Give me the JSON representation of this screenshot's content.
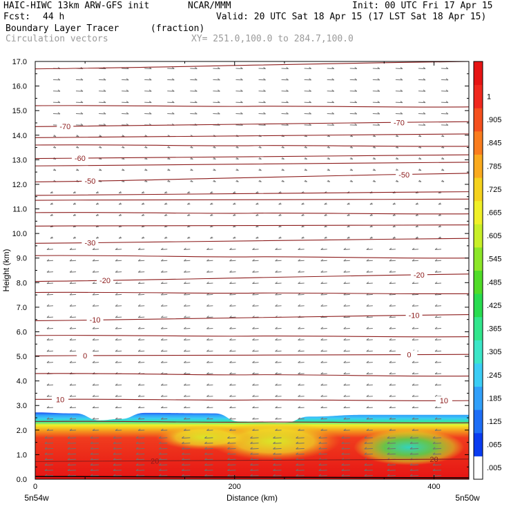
{
  "header": {
    "model": "HAIC-HIWC 13km ARW-GFS init",
    "org": "NCAR/MMM",
    "init": "Init: 00 UTC Fri 17 Apr 15",
    "fcst_label": "Fcst:",
    "fcst_value": "44 h",
    "valid": "Valid: 20 UTC Sat 18 Apr 15 (17 LST Sat 18 Apr 15)",
    "field1_name": "Boundary Layer Tracer",
    "field1_units": "(fraction)",
    "field2_name": "Circulation vectors",
    "xsec_line": "XY= 251.0,100.0 to 284.7,100.0"
  },
  "colors": {
    "contour": "#8b1a1a",
    "vector": "#707070",
    "colorbar": [
      "#ffffff",
      "#0a3cf0",
      "#1e6ef6",
      "#32a0fa",
      "#3ccdf5",
      "#3ce6c8",
      "#32e68c",
      "#28dc50",
      "#50dc28",
      "#8ce628",
      "#c8ef28",
      "#f0f028",
      "#f5d21e",
      "#faaa1e",
      "#fa7d1e",
      "#f5501e",
      "#f0281e",
      "#e61414"
    ]
  },
  "chart_data": {
    "type": "heatmap",
    "title": "Boundary Layer Tracer",
    "xlabel": "Distance (km)",
    "ylabel": "Height (km)",
    "xlim": [
      0,
      435
    ],
    "ylim": [
      0,
      17
    ],
    "x_ticks": [
      0,
      200,
      400
    ],
    "x_tick_labels": [
      "0",
      "200",
      "400"
    ],
    "x_end_labels": {
      "left": "5n54w",
      "right": "5n50w"
    },
    "y_ticks": [
      0,
      1,
      2,
      3,
      4,
      5,
      6,
      7,
      8,
      9,
      10,
      11,
      12,
      13,
      14,
      15,
      16,
      17
    ],
    "y_tick_labels": [
      "0.0",
      "1.0",
      "2.0",
      "3.0",
      "4.0",
      "5.0",
      "6.0",
      "7.0",
      "8.0",
      "9.0",
      "10.0",
      "11.0",
      "12.0",
      "13.0",
      "14.0",
      "15.0",
      "16.0",
      "17.0"
    ],
    "colorbar_labels": [
      ".005",
      ".065",
      ".125",
      ".185",
      ".245",
      ".305",
      ".365",
      ".425",
      ".485",
      ".545",
      ".605",
      ".665",
      ".725",
      ".785",
      ".845",
      ".905",
      "1"
    ],
    "boundary_layer_top_km": [
      {
        "x": 0,
        "h": 2.72
      },
      {
        "x": 40,
        "h": 2.68
      },
      {
        "x": 65,
        "h": 2.4
      },
      {
        "x": 85,
        "h": 2.45
      },
      {
        "x": 110,
        "h": 2.7
      },
      {
        "x": 180,
        "h": 2.68
      },
      {
        "x": 205,
        "h": 2.35
      },
      {
        "x": 250,
        "h": 2.3
      },
      {
        "x": 275,
        "h": 2.55
      },
      {
        "x": 330,
        "h": 2.62
      },
      {
        "x": 435,
        "h": 2.62
      }
    ],
    "isotherms": [
      {
        "label": "10",
        "left_km": 3.25,
        "right_km": 3.2,
        "label_x": [
          25,
          410
        ]
      },
      {
        "label": "0",
        "left_km": 5.02,
        "right_km": 5.08,
        "label_x": [
          50,
          375
        ]
      },
      {
        "label": "-10",
        "left_km": 6.45,
        "right_km": 6.7,
        "label_x": [
          60,
          380
        ]
      },
      {
        "label": "-20",
        "left_km": 8.05,
        "right_km": 8.35,
        "label_x": [
          70,
          385
        ]
      },
      {
        "label": "-30",
        "left_km": 9.6,
        "right_km": 9.8,
        "label_x": [
          55,
          null
        ]
      },
      {
        "label": "-50",
        "left_km": 12.1,
        "right_km": 12.45,
        "label_x": [
          55,
          370
        ]
      },
      {
        "label": "-60",
        "left_km": 13.05,
        "right_km": 13.2,
        "label_x": [
          45,
          null
        ]
      },
      {
        "label": "-70",
        "left_km": 14.35,
        "right_km": 14.55,
        "label_x": [
          30,
          365
        ]
      }
    ],
    "surface_isotherm": {
      "label": "20",
      "left_km": 0.72,
      "right_km": 0.82,
      "label_x": [
        120,
        400
      ]
    }
  }
}
